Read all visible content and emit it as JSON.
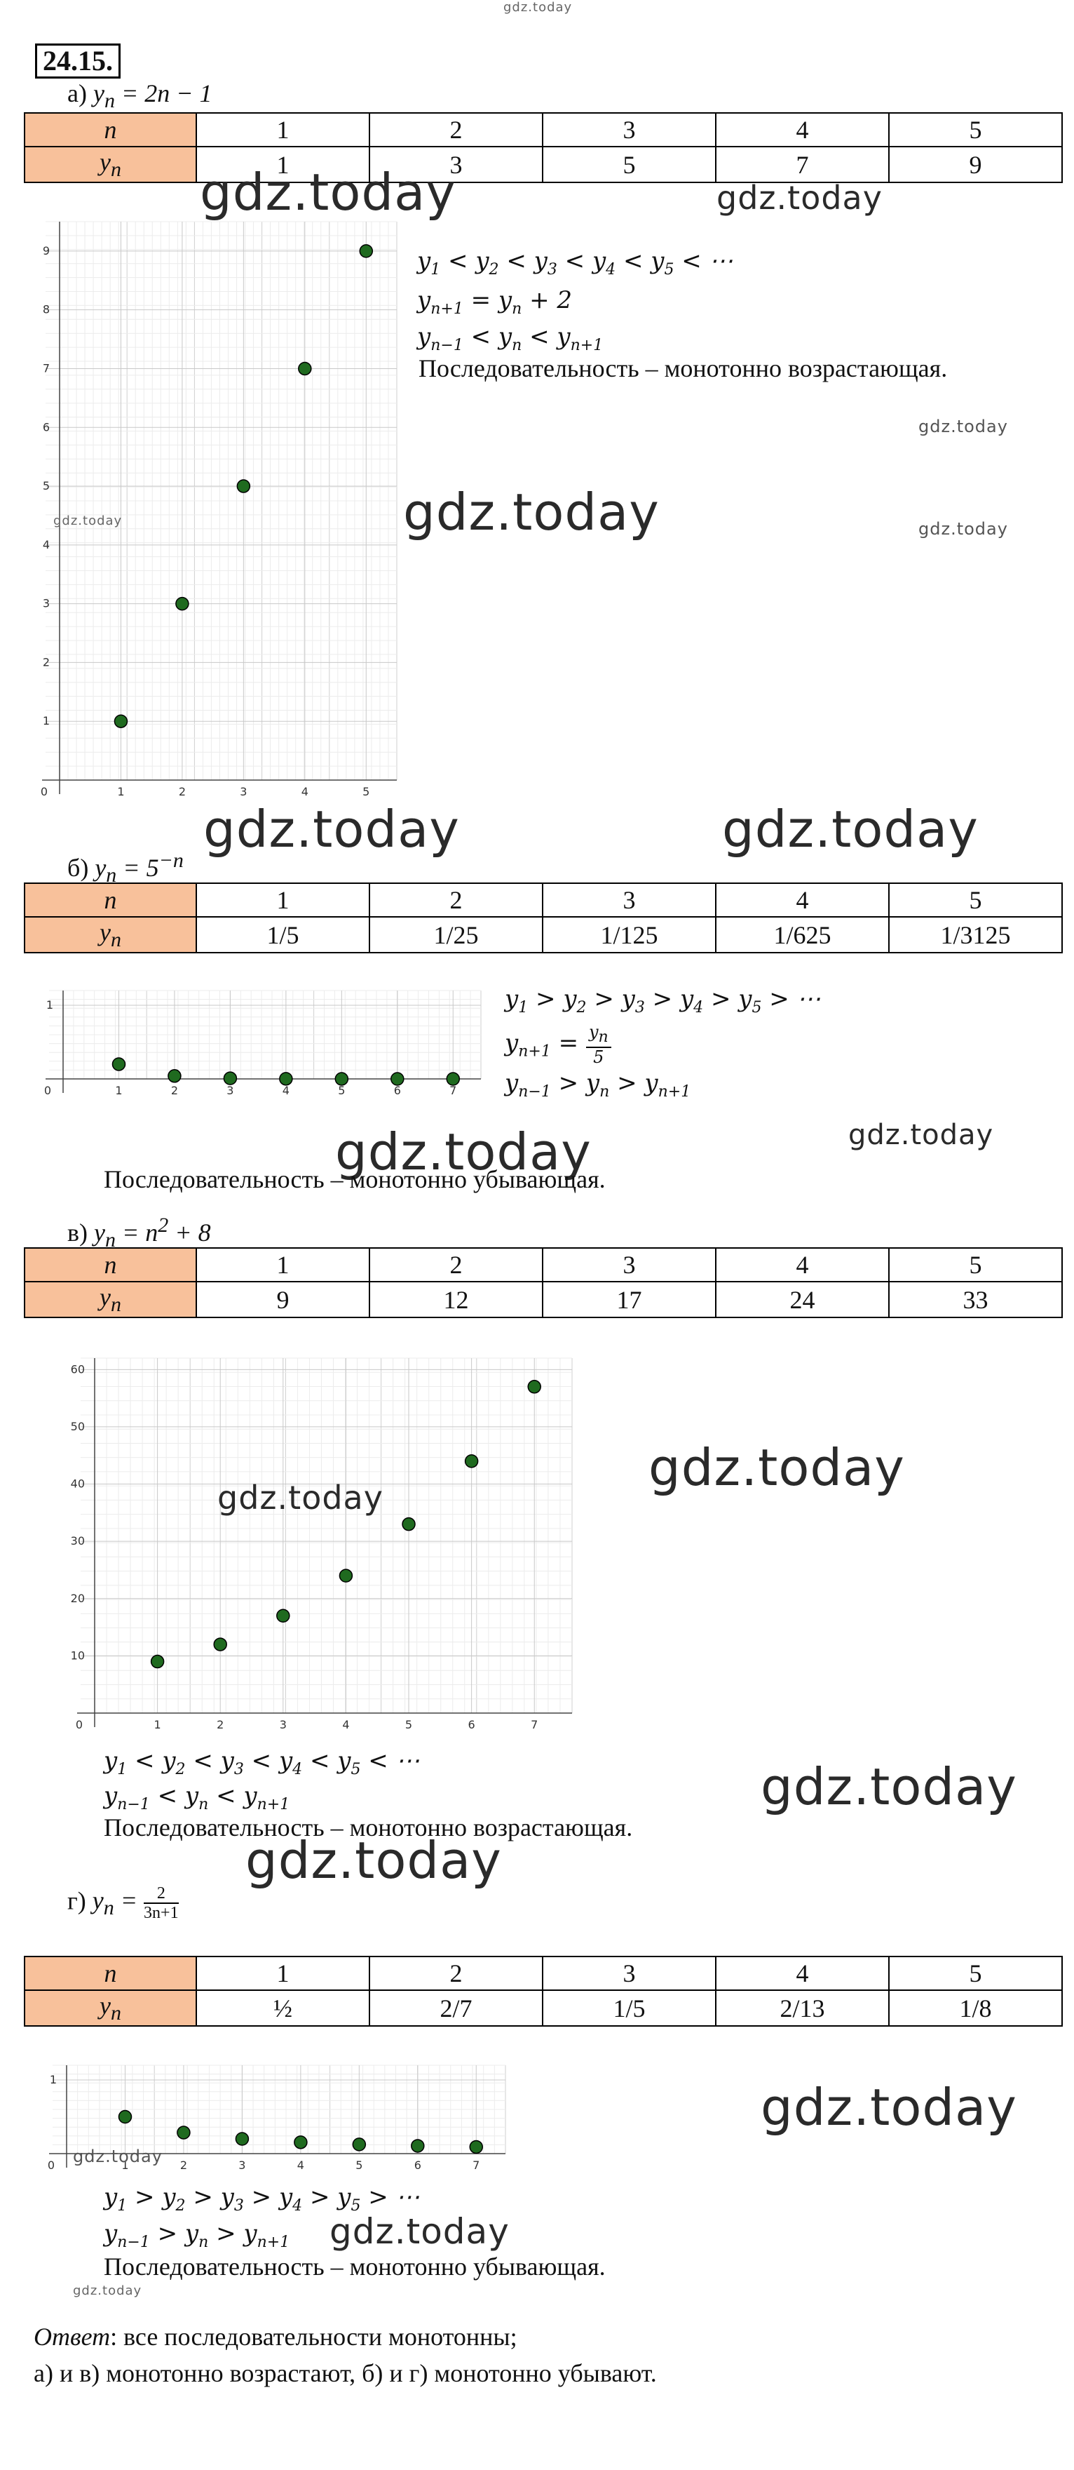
{
  "watermarks": {
    "top": "gdz.today",
    "w1": "gdz.today",
    "w2": "gdz.today",
    "w3": "gdz.today",
    "w4": "gdz.today",
    "w5": "gdz.today",
    "w6": "gdz.today",
    "w7": "gdz.today",
    "w8": "gdz.today",
    "w9": "gdz.today",
    "w10": "gdz.today",
    "w11": "gdz.today",
    "w12": "gdz.today",
    "w13": "gdz.today",
    "w14": "gdz.today",
    "w15": "gdz.today",
    "w16": "gdz.today",
    "w17": "gdz.today",
    "w18": "gdz.today",
    "w19": "gdz.today",
    "w20": "gdz.today"
  },
  "task_number": "24.15.",
  "table_header": {
    "n": "n",
    "y": "y"
  },
  "parts": {
    "a": {
      "label": "а)",
      "formula": "y_n = 2n − 1",
      "n": [
        "1",
        "2",
        "3",
        "4",
        "5"
      ],
      "y": [
        "1",
        "3",
        "5",
        "7",
        "9"
      ],
      "notes": [
        "Последовательность – монотонно возрастающая."
      ]
    },
    "b": {
      "label": "б)",
      "formula": "y_n = 5^−n",
      "n": [
        "1",
        "2",
        "3",
        "4",
        "5"
      ],
      "y": [
        "1/5",
        "1/25",
        "1/125",
        "1/625",
        "1/3125"
      ],
      "notes": [
        "Последовательность – монотонно убывающая."
      ]
    },
    "c": {
      "label": "в)",
      "formula": "y_n = n² + 8",
      "n": [
        "1",
        "2",
        "3",
        "4",
        "5"
      ],
      "y": [
        "9",
        "12",
        "17",
        "24",
        "33"
      ],
      "notes": [
        "Последовательность – монотонно возрастающая."
      ]
    },
    "d": {
      "label": "г)",
      "formula": "y_n = 2/(3n+1)",
      "n": [
        "1",
        "2",
        "3",
        "4",
        "5"
      ],
      "y": [
        "½",
        "2/7",
        "1/5",
        "2/13",
        "1/8"
      ],
      "notes": [
        "Последовательность – монотонно убывающая."
      ]
    }
  },
  "answer": {
    "label": "Ответ",
    "line1": ": все последовательности монотонны;",
    "line2": "а) и в) монотонно возрастают, б) и г) монотонно убывают."
  },
  "chart_data": [
    {
      "type": "scatter",
      "x": [
        1,
        2,
        3,
        4,
        5
      ],
      "y": [
        1,
        3,
        5,
        7,
        9
      ],
      "xlim": [
        0,
        5.5
      ],
      "ylim": [
        0,
        9.5
      ],
      "x_ticks": [
        "0",
        "1",
        "2",
        "3",
        "4",
        "5"
      ],
      "y_ticks": [
        "1",
        "2",
        "3",
        "4",
        "5",
        "6",
        "7",
        "8",
        "9"
      ],
      "grid": true,
      "point_color": "#1f6a1f"
    },
    {
      "type": "scatter",
      "x": [
        1,
        2,
        3,
        4,
        5,
        6,
        7
      ],
      "y": [
        0.2,
        0.04,
        0.008,
        0.0016,
        0.00032,
        6.4e-05,
        1.28e-05
      ],
      "xlim": [
        0,
        7.5
      ],
      "ylim": [
        0,
        1.2
      ],
      "x_ticks": [
        "0",
        "1",
        "2",
        "3",
        "4",
        "5",
        "6",
        "7"
      ],
      "y_ticks": [
        "1"
      ],
      "grid": true,
      "point_color": "#1f6a1f"
    },
    {
      "type": "scatter",
      "x": [
        1,
        2,
        3,
        4,
        5,
        6,
        7
      ],
      "y": [
        9,
        12,
        17,
        24,
        33,
        44,
        57
      ],
      "xlim": [
        0,
        7.6
      ],
      "ylim": [
        0,
        62
      ],
      "x_ticks": [
        "0",
        "1",
        "2",
        "3",
        "4",
        "5",
        "6",
        "7"
      ],
      "y_ticks": [
        "10",
        "20",
        "30",
        "40",
        "50",
        "60"
      ],
      "grid": true,
      "point_color": "#1f6a1f"
    },
    {
      "type": "scatter",
      "x": [
        1,
        2,
        3,
        4,
        5,
        6,
        7
      ],
      "y": [
        0.5,
        0.2857,
        0.2,
        0.1538,
        0.125,
        0.1053,
        0.0909
      ],
      "xlim": [
        0,
        7.5
      ],
      "ylim": [
        0,
        1.2
      ],
      "x_ticks": [
        "0",
        "1",
        "2",
        "3",
        "4",
        "5",
        "6",
        "7"
      ],
      "y_ticks": [
        "1"
      ],
      "grid": true,
      "point_color": "#1f6a1f"
    }
  ]
}
